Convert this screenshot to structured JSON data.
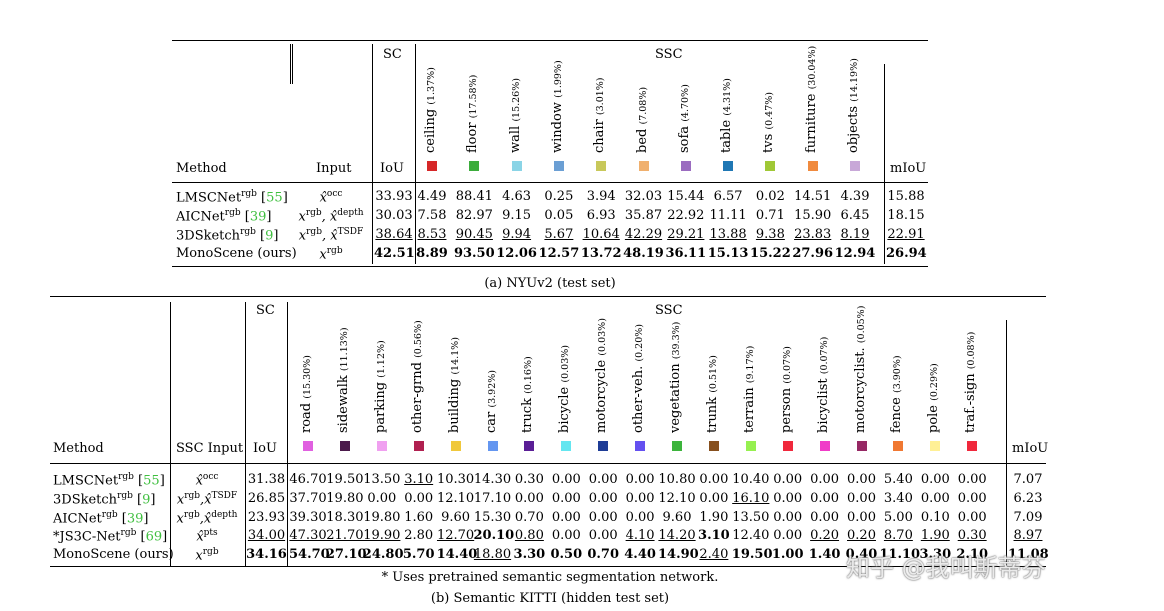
{
  "nyu": {
    "headers": {
      "method": "Method",
      "input": "Input",
      "sc": "SC",
      "ssc": "SSC",
      "iou": "IoU",
      "miou": "mIoU"
    },
    "classes": [
      {
        "name": "ceiling",
        "pct": "(1.37%)",
        "color": "#d62728"
      },
      {
        "name": "floor",
        "pct": "(17.58%)",
        "color": "#3cac3c"
      },
      {
        "name": "wall",
        "pct": "(15.26%)",
        "color": "#8ad4e6"
      },
      {
        "name": "window",
        "pct": "(1.99%)",
        "color": "#6b9fd4"
      },
      {
        "name": "chair",
        "pct": "(3.01%)",
        "color": "#c8c85a"
      },
      {
        "name": "bed",
        "pct": "(7.08%)",
        "color": "#f0b06e"
      },
      {
        "name": "sofa",
        "pct": "(4.70%)",
        "color": "#9b6cc0"
      },
      {
        "name": "table",
        "pct": "(4.31%)",
        "color": "#1f77b4"
      },
      {
        "name": "tvs",
        "pct": "(0.47%)",
        "color": "#a0c836"
      },
      {
        "name": "furniture",
        "pct": "(30.04%)",
        "color": "#f08a3e"
      },
      {
        "name": "objects",
        "pct": "(14.19%)",
        "color": "#c8a8d8"
      }
    ],
    "rows": [
      {
        "method": "LMSCNet",
        "sup": "rgb",
        "ref": "55",
        "input": "x̂",
        "input_sup": "occ",
        "iou": "33.93",
        "vals": [
          "4.49",
          "88.41",
          "4.63",
          "0.25",
          "3.94",
          "32.03",
          "15.44",
          "6.57",
          "0.02",
          "14.51",
          "4.39"
        ],
        "miou": "15.88",
        "style": ""
      },
      {
        "method": "AICNet",
        "sup": "rgb",
        "ref": "39",
        "input": "x",
        "input_sup": "rgb",
        "input2": ", x̂",
        "input2_sup": "depth",
        "iou": "30.03",
        "vals": [
          "7.58",
          "82.97",
          "9.15",
          "0.05",
          "6.93",
          "35.87",
          "22.92",
          "11.11",
          "0.71",
          "15.90",
          "6.45"
        ],
        "miou": "18.15",
        "style": ""
      },
      {
        "method": "3DSketch",
        "sup": "rgb",
        "ref": "9",
        "input": "x",
        "input_sup": "rgb",
        "input2": ", x̂",
        "input2_sup": "TSDF",
        "iou": "38.64",
        "vals": [
          "8.53",
          "90.45",
          "9.94",
          "5.67",
          "10.64",
          "42.29",
          "29.21",
          "13.88",
          "9.38",
          "23.83",
          "8.19"
        ],
        "miou": "22.91",
        "style": "u"
      },
      {
        "method": "MonoScene (ours)",
        "sup": "",
        "ref": "",
        "input": "x",
        "input_sup": "rgb",
        "iou": "42.51",
        "vals": [
          "8.89",
          "93.50",
          "12.06",
          "12.57",
          "13.72",
          "48.19",
          "36.11",
          "15.13",
          "15.22",
          "27.96",
          "12.94"
        ],
        "miou": "26.94",
        "style": "b"
      }
    ],
    "caption": "(a) NYUv2 (test set)"
  },
  "kitti": {
    "headers": {
      "method": "Method",
      "input": "SSC Input",
      "sc": "SC",
      "ssc": "SSC",
      "iou": "IoU",
      "miou": "mIoU"
    },
    "classes": [
      {
        "name": "road",
        "pct": "(15.30%)",
        "color": "#e060e0"
      },
      {
        "name": "sidewalk",
        "pct": "(11.13%)",
        "color": "#4b1a4b"
      },
      {
        "name": "parking",
        "pct": "(1.12%)",
        "color": "#f0a0f0"
      },
      {
        "name": "other-grnd",
        "pct": "(0.56%)",
        "color": "#b02050"
      },
      {
        "name": "building",
        "pct": "(14.1%)",
        "color": "#f0c83c"
      },
      {
        "name": "car",
        "pct": "(3.92%)",
        "color": "#6496f0"
      },
      {
        "name": "truck",
        "pct": "(0.16%)",
        "color": "#5a1e96"
      },
      {
        "name": "bicycle",
        "pct": "(0.03%)",
        "color": "#64e6f0"
      },
      {
        "name": "motorcycle",
        "pct": "(0.03%)",
        "color": "#1e3c96"
      },
      {
        "name": "other-veh.",
        "pct": "(0.20%)",
        "color": "#6450f0"
      },
      {
        "name": "vegetation",
        "pct": "(39.3%)",
        "color": "#3cb43c"
      },
      {
        "name": "trunk",
        "pct": "(0.51%)",
        "color": "#87501e"
      },
      {
        "name": "terrain",
        "pct": "(9.17%)",
        "color": "#96f050"
      },
      {
        "name": "person",
        "pct": "(0.07%)",
        "color": "#f0283c"
      },
      {
        "name": "bicyclist",
        "pct": "(0.07%)",
        "color": "#f03cc8"
      },
      {
        "name": "motorcyclist.",
        "pct": "(0.05%)",
        "color": "#962864"
      },
      {
        "name": "fence",
        "pct": "(3.90%)",
        "color": "#f07832"
      },
      {
        "name": "pole",
        "pct": "(0.29%)",
        "color": "#fff096"
      },
      {
        "name": "traf.-sign",
        "pct": "(0.08%)",
        "color": "#f0283c"
      }
    ],
    "rows": [
      {
        "method": "LMSCNet",
        "sup": "rgb",
        "ref": "55",
        "input": "x̂",
        "input_sup": "occ",
        "iou": "31.38",
        "vals": [
          "46.70",
          "19.50",
          "13.50",
          "3.10",
          "10.30",
          "14.30",
          "0.30",
          "0.00",
          "0.00",
          "0.00",
          "10.80",
          "0.00",
          "10.40",
          "0.00",
          "0.00",
          "0.00",
          "5.40",
          "0.00",
          "0.00"
        ],
        "miou": "7.07"
      },
      {
        "method": "3DSketch",
        "sup": "rgb",
        "ref": "9",
        "input": "x",
        "input_sup": "rgb",
        "input2": ",x̂",
        "input2_sup": "TSDF",
        "iou": "26.85",
        "vals": [
          "37.70",
          "19.80",
          "0.00",
          "0.00",
          "12.10",
          "17.10",
          "0.00",
          "0.00",
          "0.00",
          "0.00",
          "12.10",
          "0.00",
          "16.10",
          "0.00",
          "0.00",
          "0.00",
          "3.40",
          "0.00",
          "0.00"
        ],
        "miou": "6.23"
      },
      {
        "method": "AICNet",
        "sup": "rgb",
        "ref": "39",
        "input": "x",
        "input_sup": "rgb",
        "input2": ",x̂",
        "input2_sup": "depth",
        "iou": "23.93",
        "vals": [
          "39.30",
          "18.30",
          "19.80",
          "1.60",
          "9.60",
          "15.30",
          "0.70",
          "0.00",
          "0.00",
          "0.00",
          "9.60",
          "1.90",
          "13.50",
          "0.00",
          "0.00",
          "0.00",
          "5.00",
          "0.10",
          "0.00"
        ],
        "miou": "7.09"
      },
      {
        "method": "*JS3C-Net",
        "sup": "rgb",
        "ref": "69",
        "input": "x̂",
        "input_sup": "pts",
        "iou": "34.00",
        "vals": [
          "47.30",
          "21.70",
          "19.90",
          "2.80",
          "12.70",
          "20.10",
          "0.80",
          "0.00",
          "0.00",
          "4.10",
          "14.20",
          "3.10",
          "12.40",
          "0.00",
          "0.20",
          "0.20",
          "8.70",
          "1.90",
          "0.30"
        ],
        "miou": "8.97"
      },
      {
        "method": "MonoScene (ours)",
        "sup": "",
        "ref": "",
        "input": "x",
        "input_sup": "rgb",
        "iou": "34.16",
        "vals": [
          "54.70",
          "27.10",
          "24.80",
          "5.70",
          "14.40",
          "18.80",
          "3.30",
          "0.50",
          "0.70",
          "4.40",
          "14.90",
          "2.40",
          "19.50",
          "1.00",
          "1.40",
          "0.40",
          "11.10",
          "3.30",
          "2.10"
        ],
        "miou": "11.08"
      }
    ],
    "styles": [
      [
        "",
        "",
        "",
        "u",
        "",
        "",
        "",
        "",
        "",
        "",
        "",
        "",
        "",
        "",
        "",
        "",
        "",
        "",
        ""
      ],
      [
        "",
        "",
        "",
        "",
        "",
        "",
        "",
        "",
        "",
        "",
        "",
        "",
        "u",
        "",
        "",
        "",
        "",
        "",
        ""
      ],
      [
        "",
        "",
        "",
        "",
        "",
        "",
        "",
        "",
        "",
        "",
        "",
        "",
        "",
        "",
        "",
        "",
        "",
        "",
        ""
      ],
      [
        "u",
        "u",
        "u",
        "",
        "u",
        "b",
        "u",
        "",
        "",
        "u",
        "u",
        "b",
        "",
        "",
        "u",
        "u",
        "u",
        "u",
        "u"
      ],
      [
        "b",
        "b",
        "b",
        "b",
        "b",
        "u",
        "b",
        "b",
        "b",
        "b",
        "b",
        "u",
        "b",
        "b",
        "b",
        "b",
        "b",
        "b",
        "b"
      ]
    ],
    "iou_styles": [
      "",
      "",
      "",
      "u",
      "b"
    ],
    "miou_styles": [
      "",
      "",
      "",
      "u",
      "b"
    ],
    "footnote": "* Uses pretrained semantic segmentation network.",
    "caption": "(b) Semantic KITTI (hidden test set)"
  },
  "watermark": "知乎 @我叫斯蒂芬"
}
